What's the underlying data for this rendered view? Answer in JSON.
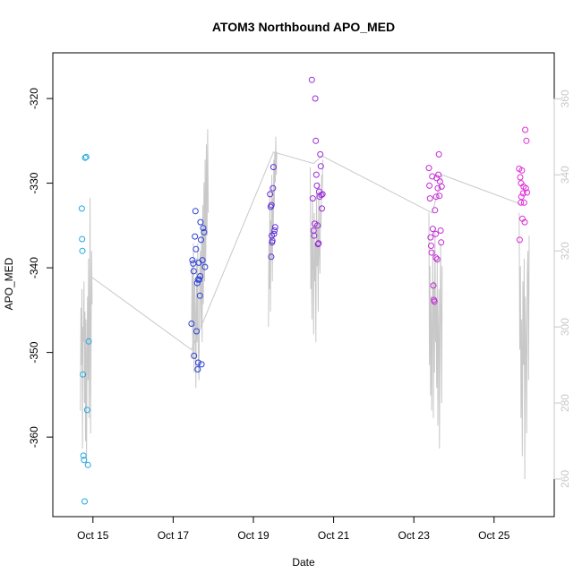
{
  "chart_data": {
    "type": "scatter",
    "title": "ATOM3 Northbound APO_MED",
    "xlabel": "Date",
    "ylabel": "APO_MED",
    "y2label": "",
    "xlim": [
      "2016-10-14T00:00",
      "2016-10-26T12:00"
    ],
    "ylim": [
      -369.4,
      -314.6
    ],
    "y2lim": [
      250.1,
      372.1
    ],
    "x_ticks": [
      {
        "date": "2016-10-15",
        "label": "Oct 15"
      },
      {
        "date": "2016-10-17",
        "label": "Oct 17"
      },
      {
        "date": "2016-10-19",
        "label": "Oct 19"
      },
      {
        "date": "2016-10-21",
        "label": "Oct 21"
      },
      {
        "date": "2016-10-23",
        "label": "Oct 23"
      },
      {
        "date": "2016-10-25",
        "label": "Oct 25"
      }
    ],
    "y_ticks": [
      -360,
      -350,
      -340,
      -330,
      -320
    ],
    "y2_ticks": [
      260,
      280,
      300,
      320,
      340,
      360
    ],
    "grid": false,
    "colors": {
      "s1": "#22a7e0",
      "s2": "#2a3fd8",
      "s3": "#5f2cd8",
      "s4": "#9b2bd8",
      "s5": "#c52bd6",
      "s6": "#de2ad8",
      "line": "#c8c8c8",
      "axis": "#000000",
      "right_axis": "#c8c8c8"
    },
    "series": [
      {
        "color_key": "s1",
        "points": [
          [
            "2016-10-14T17:20",
            -333.0
          ],
          [
            "2016-10-14T17:30",
            -336.6
          ],
          [
            "2016-10-14T17:40",
            -338.0
          ],
          [
            "2016-10-14T18:00",
            -352.6
          ],
          [
            "2016-10-14T18:20",
            -362.2
          ],
          [
            "2016-10-14T18:40",
            -362.7
          ],
          [
            "2016-10-14T19:00",
            -367.6
          ],
          [
            "2016-10-14T19:20",
            -327.0
          ],
          [
            "2016-10-14T20:00",
            -326.9
          ],
          [
            "2016-10-14T20:30",
            -356.8
          ],
          [
            "2016-10-14T21:00",
            -363.3
          ],
          [
            "2016-10-14T21:30",
            -348.7
          ]
        ]
      },
      {
        "color_key": "s2",
        "points": [
          [
            "2016-10-17T11:00",
            -346.6
          ],
          [
            "2016-10-17T11:30",
            -339.1
          ],
          [
            "2016-10-17T12:00",
            -339.5
          ],
          [
            "2016-10-17T12:30",
            -350.4
          ],
          [
            "2016-10-17T13:00",
            -336.3
          ],
          [
            "2016-10-17T13:20",
            -333.3
          ],
          [
            "2016-10-17T13:40",
            -337.8
          ],
          [
            "2016-10-17T14:00",
            -347.5
          ],
          [
            "2016-10-17T14:20",
            -341.8
          ],
          [
            "2016-10-17T14:40",
            -352.0
          ],
          [
            "2016-10-17T15:00",
            -351.2
          ],
          [
            "2016-10-17T15:20",
            -339.4
          ],
          [
            "2016-10-17T15:40",
            -341.4
          ],
          [
            "2016-10-17T16:00",
            -343.3
          ],
          [
            "2016-10-17T16:20",
            -334.6
          ],
          [
            "2016-10-17T16:40",
            -336.7
          ],
          [
            "2016-10-17T17:00",
            -351.4
          ],
          [
            "2016-10-17T17:30",
            -339.1
          ],
          [
            "2016-10-17T18:00",
            -335.3
          ],
          [
            "2016-10-17T18:30",
            -335.8
          ],
          [
            "2016-10-17T19:00",
            -339.9
          ],
          [
            "2016-10-17T16:10",
            -341.0
          ],
          [
            "2016-10-17T12:15",
            -340.4
          ],
          [
            "2016-10-17T14:50",
            -341.4
          ]
        ]
      },
      {
        "color_key": "s3",
        "points": [
          [
            "2016-10-19T10:00",
            -331.3
          ],
          [
            "2016-10-19T10:20",
            -332.8
          ],
          [
            "2016-10-19T10:40",
            -338.7
          ],
          [
            "2016-10-19T11:00",
            -336.2
          ],
          [
            "2016-10-19T11:20",
            -336.8
          ],
          [
            "2016-10-19T11:40",
            -330.6
          ],
          [
            "2016-10-19T12:00",
            -328.1
          ],
          [
            "2016-10-19T12:20",
            -336.0
          ],
          [
            "2016-10-19T12:40",
            -335.6
          ],
          [
            "2016-10-19T13:00",
            -335.2
          ],
          [
            "2016-10-19T10:50",
            -332.6
          ],
          [
            "2016-10-19T11:10",
            -337.0
          ]
        ]
      },
      {
        "color_key": "s4",
        "points": [
          [
            "2016-10-20T11:00",
            -317.8
          ],
          [
            "2016-10-20T11:30",
            -331.8
          ],
          [
            "2016-10-20T12:00",
            -335.6
          ],
          [
            "2016-10-20T12:20",
            -336.2
          ],
          [
            "2016-10-20T12:40",
            -334.8
          ],
          [
            "2016-10-20T13:00",
            -320.0
          ],
          [
            "2016-10-20T13:20",
            -325.0
          ],
          [
            "2016-10-20T13:40",
            -329.0
          ],
          [
            "2016-10-20T14:00",
            -330.3
          ],
          [
            "2016-10-20T14:20",
            -335.0
          ],
          [
            "2016-10-20T14:40",
            -337.2
          ],
          [
            "2016-10-20T15:00",
            -337.1
          ],
          [
            "2016-10-20T15:20",
            -331.0
          ],
          [
            "2016-10-20T15:40",
            -331.6
          ],
          [
            "2016-10-20T16:00",
            -326.6
          ],
          [
            "2016-10-20T16:20",
            -328.0
          ],
          [
            "2016-10-20T16:40",
            -331.4
          ],
          [
            "2016-10-20T17:00",
            -333.0
          ],
          [
            "2016-10-20T17:20",
            -331.3
          ]
        ]
      },
      {
        "color_key": "s5",
        "points": [
          [
            "2016-10-23T09:00",
            -328.2
          ],
          [
            "2016-10-23T09:20",
            -330.3
          ],
          [
            "2016-10-23T09:40",
            -331.8
          ],
          [
            "2016-10-23T10:00",
            -336.4
          ],
          [
            "2016-10-23T10:20",
            -337.4
          ],
          [
            "2016-10-23T10:40",
            -338.2
          ],
          [
            "2016-10-23T11:00",
            -329.2
          ],
          [
            "2016-10-23T11:20",
            -335.4
          ],
          [
            "2016-10-23T11:40",
            -342.1
          ],
          [
            "2016-10-23T12:00",
            -343.8
          ],
          [
            "2016-10-23T12:20",
            -344.0
          ],
          [
            "2016-10-23T12:40",
            -333.2
          ],
          [
            "2016-10-23T13:00",
            -336.0
          ],
          [
            "2016-10-23T13:20",
            -331.6
          ],
          [
            "2016-10-23T13:40",
            -329.4
          ],
          [
            "2016-10-23T14:00",
            -339.0
          ],
          [
            "2016-10-23T14:20",
            -330.6
          ],
          [
            "2016-10-23T14:40",
            -329.0
          ],
          [
            "2016-10-23T15:00",
            -326.6
          ],
          [
            "2016-10-23T15:20",
            -331.5
          ],
          [
            "2016-10-23T15:40",
            -329.8
          ],
          [
            "2016-10-23T16:00",
            -335.6
          ],
          [
            "2016-10-23T16:20",
            -337.0
          ],
          [
            "2016-10-23T16:40",
            -330.4
          ],
          [
            "2016-10-23T13:10",
            -338.8
          ]
        ]
      },
      {
        "color_key": "s6",
        "points": [
          [
            "2016-10-25T15:00",
            -328.3
          ],
          [
            "2016-10-25T15:20",
            -336.7
          ],
          [
            "2016-10-25T15:40",
            -329.3
          ],
          [
            "2016-10-25T16:00",
            -332.3
          ],
          [
            "2016-10-25T16:20",
            -331.6
          ],
          [
            "2016-10-25T16:40",
            -328.5
          ],
          [
            "2016-10-25T17:00",
            -334.2
          ],
          [
            "2016-10-25T17:20",
            -331.2
          ],
          [
            "2016-10-25T17:40",
            -330.4
          ],
          [
            "2016-10-25T18:00",
            -332.3
          ],
          [
            "2016-10-25T18:20",
            -334.6
          ],
          [
            "2016-10-25T18:40",
            -323.7
          ],
          [
            "2016-10-25T19:00",
            -330.6
          ],
          [
            "2016-10-25T19:20",
            -325.0
          ],
          [
            "2016-10-25T19:40",
            -331.1
          ],
          [
            "2016-10-25T16:10",
            -330.0
          ]
        ]
      }
    ],
    "line_series": {
      "axis": "right",
      "segments": [
        {
          "from": "2016-10-14T16:30",
          "to": "2016-10-14T23:30",
          "values": [
            278,
            305,
            290,
            310,
            268,
            300,
            296,
            312,
            280,
            304,
            270,
            302,
            264,
            292,
            308,
            286,
            318,
            276,
            300,
            334,
            272,
            296,
            320,
            306
          ]
        },
        {
          "from": "2016-10-17T11:00",
          "to": "2016-10-17T21:00",
          "values": [
            300,
            316,
            292,
            322,
            288,
            312,
            304,
            284,
            318,
            296,
            322,
            290,
            286,
            310,
            320,
            300,
            326,
            296,
            332,
            306,
            338,
            312,
            344,
            316,
            348,
            324,
            352,
            330
          ]
        },
        {
          "from": "2016-10-19T09:00",
          "to": "2016-10-19T14:00",
          "values": [
            300,
            322,
            310,
            336,
            304,
            328,
            318,
            340,
            312,
            334,
            326,
            344,
            332,
            346,
            338,
            350,
            340,
            346
          ]
        },
        {
          "from": "2016-10-20T10:00",
          "to": "2016-10-20T17:30",
          "values": [
            342,
            310,
            326,
            302,
            334,
            318,
            298,
            330,
            312,
            322,
            296,
            336,
            316,
            328,
            304,
            338,
            320,
            314,
            332,
            326,
            340,
            334,
            344
          ]
        },
        {
          "from": "2016-10-23T09:00",
          "to": "2016-10-23T17:00",
          "values": [
            330,
            290,
            316,
            282,
            308,
            278,
            300,
            320,
            276,
            312,
            288,
            326,
            296,
            306,
            284,
            318,
            274,
            300,
            310,
            268,
            296,
            322,
            302,
            280,
            316
          ]
        },
        {
          "from": "2016-10-25T15:00",
          "to": "2016-10-25T21:00",
          "values": [
            330,
            294,
            316,
            276,
            302,
            266,
            312,
            290,
            318,
            260,
            308,
            296,
            272,
            314,
            320,
            286,
            324
          ]
        }
      ],
      "median_line": [
        [
          "2016-10-14T23:30",
          313
        ],
        [
          "2016-10-17T11:00",
          294
        ],
        [
          "2016-10-19T12:00",
          346
        ],
        [
          "2016-10-20T12:00",
          343
        ],
        [
          "2016-10-20T17:00",
          345
        ],
        [
          "2016-10-23T11:00",
          330
        ],
        [
          "2016-10-23T17:00",
          340
        ],
        [
          "2016-10-25T18:00",
          332
        ]
      ]
    }
  }
}
